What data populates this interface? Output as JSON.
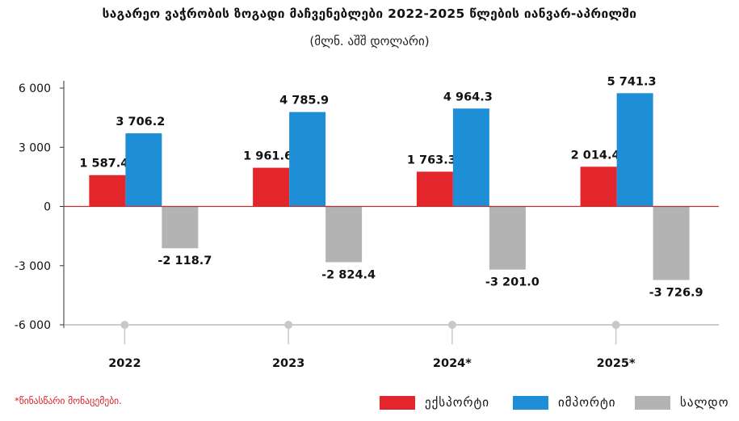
{
  "title": "საგარეო ვაჭრობის ზოგადი მაჩვენებლები 2022-2025 წლების იანვარ-აპრილში",
  "subtitle": "(მლნ. აშშ დოლარი)",
  "footnote": "*წინასწარი მონაცემები.",
  "colors": {
    "export": "#e3262b",
    "import": "#1e8fd6",
    "balance": "#b3b3b3",
    "zero_line": "#c92a2a",
    "axis": "#333333",
    "dot": "#c8c8c8"
  },
  "chart_data": {
    "type": "bar",
    "categories": [
      "2022",
      "2023",
      "2024*",
      "2025*"
    ],
    "series": [
      {
        "name": "ექსპორტი",
        "values": [
          1587.4,
          1961.6,
          1763.3,
          2014.4
        ],
        "labels": [
          "1 587.4",
          "1 961.6",
          "1 763.3",
          "2 014.4"
        ]
      },
      {
        "name": "იმპორტი",
        "values": [
          3706.2,
          4785.9,
          4964.3,
          5741.3
        ],
        "labels": [
          "3 706.2",
          "4 785.9",
          "4 964.3",
          "5 741.3"
        ]
      },
      {
        "name": "სალდო",
        "values": [
          -2118.7,
          -2824.4,
          -3201.0,
          -3726.9
        ],
        "labels": [
          "-2 118.7",
          "-2 824.4",
          "-3 201.0",
          "-3 726.9"
        ]
      }
    ],
    "yticks": [
      6000,
      3000,
      0,
      -3000,
      -6000
    ],
    "ytick_labels": [
      "6 000",
      "3 000",
      "0",
      "-3 000",
      "-6 000"
    ],
    "ylim": [
      -6000,
      6000
    ],
    "legend_position": "bottom-right",
    "grid": false
  }
}
